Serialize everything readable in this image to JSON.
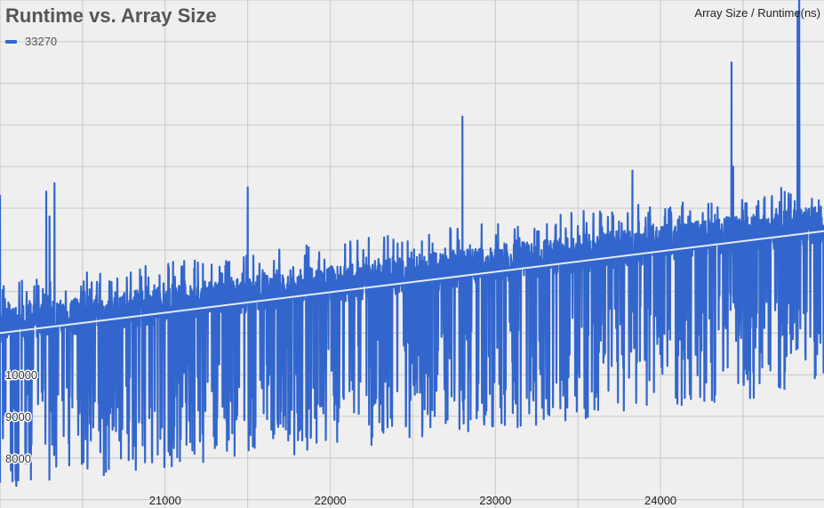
{
  "chart_data": {
    "type": "line",
    "title": "Runtime vs. Array Size",
    "axis_caption": "Array Size / Runtime(ns)",
    "x_ticks": [
      21000,
      22000,
      23000,
      24000
    ],
    "y_ticks": [
      8000,
      9000,
      10000
    ],
    "xlim": [
      20000,
      24990
    ],
    "ylim": [
      6800,
      19000
    ],
    "grid": true,
    "legend_position": "top-left",
    "series": [
      {
        "name": "33270",
        "color": "#3366cc",
        "note": "noisy runtime samples, one per array size",
        "trend_start": [
          20000,
          11000
        ],
        "trend_end": [
          24990,
          13450
        ],
        "typical_noise": [
          -1500,
          600
        ],
        "x": [
          20000,
          20280,
          20300,
          20330,
          20500,
          21500,
          22800,
          23830,
          24430,
          24440,
          24830,
          24840
        ],
        "values": [
          14300,
          14400,
          13800,
          14600,
          12000,
          14500,
          16200,
          14900,
          17500,
          15000,
          18700,
          19000
        ]
      }
    ],
    "trend_line": {
      "color": "#e6ebf7"
    }
  }
}
